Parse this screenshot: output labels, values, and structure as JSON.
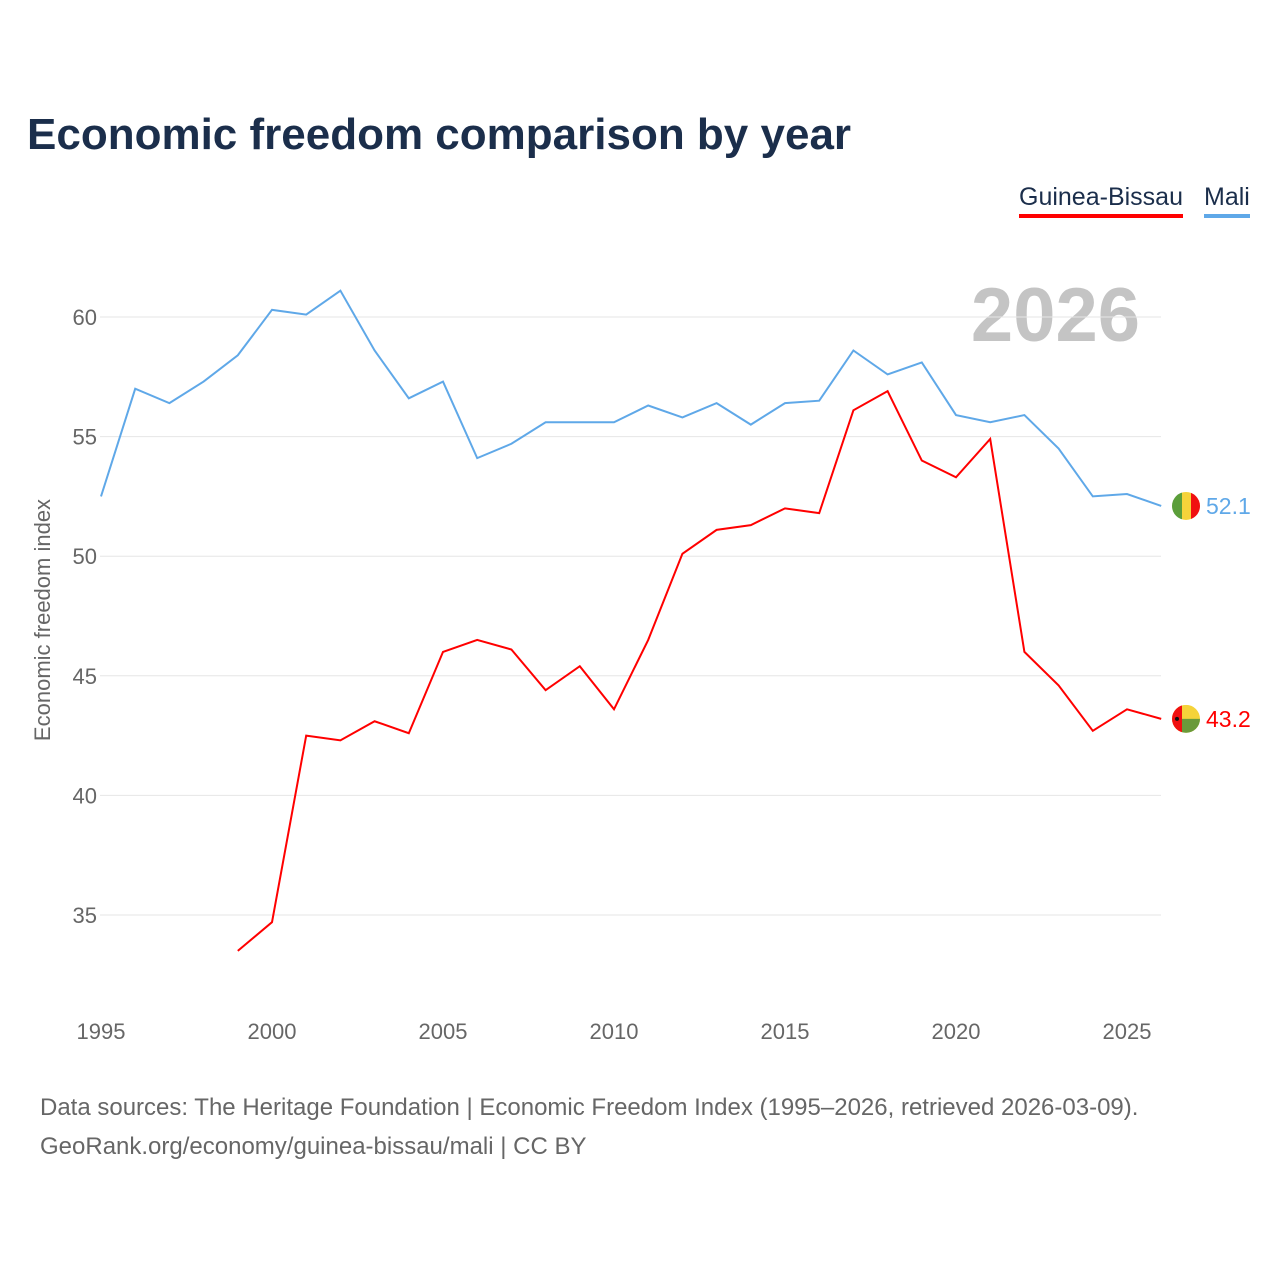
{
  "chart_data": {
    "type": "line",
    "title": "Economic freedom comparison by year",
    "ylabel": "Economic freedom index",
    "xlabel": "",
    "watermark_year": "2026",
    "xlim": [
      1995,
      2026
    ],
    "ylim": [
      32,
      62
    ],
    "x_ticks": [
      "1995",
      "2000",
      "2005",
      "2010",
      "2015",
      "2020",
      "2025"
    ],
    "y_ticks": [
      "35",
      "40",
      "45",
      "50",
      "55",
      "60"
    ],
    "grid": true,
    "legend_position": "top-right",
    "series": [
      {
        "name": "Guinea-Bissau",
        "color": "#ff0000",
        "end_label": "43.2",
        "x": [
          1999,
          2000,
          2001,
          2002,
          2003,
          2004,
          2005,
          2006,
          2007,
          2008,
          2009,
          2010,
          2011,
          2012,
          2013,
          2014,
          2015,
          2016,
          2017,
          2018,
          2019,
          2020,
          2021,
          2022,
          2023,
          2024,
          2025,
          2026
        ],
        "values": [
          33.5,
          34.7,
          42.5,
          42.3,
          43.1,
          42.6,
          46.0,
          46.5,
          46.1,
          44.4,
          45.4,
          43.6,
          46.5,
          50.1,
          51.1,
          51.3,
          52.0,
          51.8,
          56.1,
          56.9,
          54.0,
          53.3,
          54.9,
          46.0,
          44.6,
          42.7,
          43.6,
          43.2
        ]
      },
      {
        "name": "Mali",
        "color": "#5fa8e8",
        "end_label": "52.1",
        "x": [
          1995,
          1996,
          1997,
          1998,
          1999,
          2000,
          2001,
          2002,
          2003,
          2004,
          2005,
          2006,
          2007,
          2008,
          2009,
          2010,
          2011,
          2012,
          2013,
          2014,
          2015,
          2016,
          2017,
          2018,
          2019,
          2020,
          2021,
          2022,
          2023,
          2024,
          2025,
          2026
        ],
        "values": [
          52.5,
          57.0,
          56.4,
          57.3,
          58.4,
          60.3,
          60.1,
          61.1,
          58.6,
          56.6,
          57.3,
          54.1,
          54.7,
          55.6,
          55.6,
          55.6,
          56.3,
          55.8,
          56.4,
          55.5,
          56.4,
          56.5,
          58.6,
          57.6,
          58.1,
          55.9,
          55.6,
          55.9,
          54.5,
          52.5,
          52.6,
          52.1
        ]
      }
    ]
  },
  "source_line1": "Data sources: The Heritage Foundation | Economic Freedom Index (1995–2026, retrieved 2026-03-09).",
  "source_line2": "GeoRank.org/economy/guinea-bissau/mali | CC BY"
}
